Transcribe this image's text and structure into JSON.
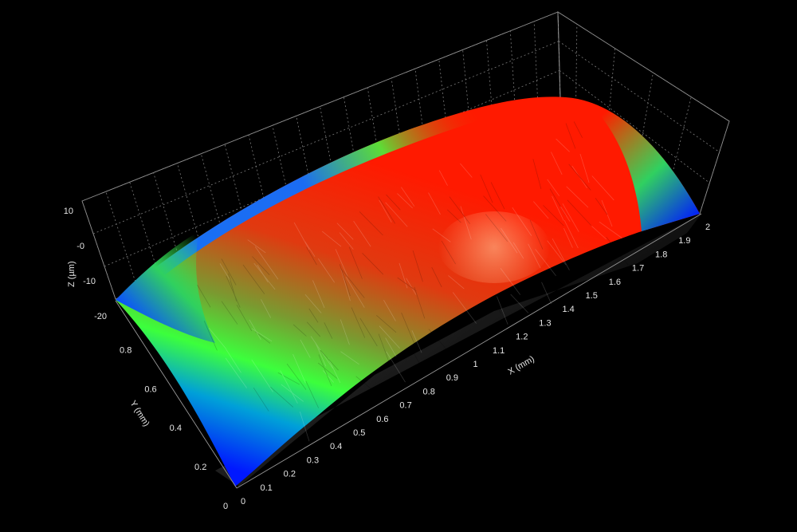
{
  "chart_data": {
    "type": "surface3d",
    "title": "",
    "x_axis": {
      "label": "X (mm)",
      "range": [
        0,
        2
      ],
      "ticks": [
        "0",
        "0.1",
        "0.2",
        "0.3",
        "0.4",
        "0.5",
        "0.6",
        "0.7",
        "0.8",
        "0.9",
        "1",
        "1.1",
        "1.2",
        "1.3",
        "1.4",
        "1.5",
        "1.6",
        "1.7",
        "1.8",
        "1.9",
        "2"
      ]
    },
    "y_axis": {
      "label": "Y (mm)",
      "range": [
        0,
        0.9
      ],
      "ticks": [
        "0",
        "0.2",
        "0.4",
        "0.6",
        "0.8"
      ]
    },
    "z_axis": {
      "label": "Z (µm)",
      "range": [
        -20,
        10
      ],
      "ticks": [
        "-20",
        "-10",
        "-0",
        "10"
      ]
    },
    "surface": {
      "shape": "cylindrical dome, crest along X near Y = 0.45 mm",
      "z_peak": 8,
      "z_edge": -20
    },
    "colormap": [
      "#0018ff",
      "#00b4ff",
      "#3cff3c",
      "#ff2000"
    ],
    "grid": true,
    "background": "#000000"
  }
}
